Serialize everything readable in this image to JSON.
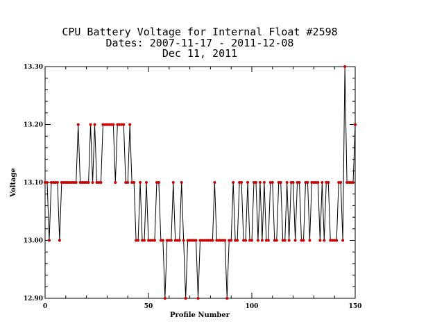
{
  "chart_data": {
    "type": "line",
    "title_lines": [
      "CPU Battery Voltage for Internal Float #2598",
      "Dates:  2007-11-17 -  2011-12-08",
      "Dec 11, 2011"
    ],
    "xlabel": "Profile Number",
    "ylabel": "Voltage",
    "xlim": [
      0,
      150
    ],
    "ylim": [
      12.9,
      13.3
    ],
    "x_ticks": [
      0,
      50,
      100,
      150
    ],
    "y_ticks": [
      "12.90",
      "13.00",
      "13.10",
      "13.20",
      "13.30"
    ],
    "grid": false,
    "line_color": "#000000",
    "marker_color": "#cc0000",
    "series": [
      {
        "values": [
          13.1,
          13.1,
          13.0,
          13.1,
          13.1,
          13.1,
          13.1,
          13.0,
          13.1,
          13.1,
          13.1,
          13.1,
          13.1,
          13.1,
          13.1,
          13.1,
          13.2,
          13.1,
          13.1,
          13.1,
          13.1,
          13.1,
          13.2,
          13.1,
          13.2,
          13.1,
          13.1,
          13.1,
          13.2,
          13.2,
          13.2,
          13.2,
          13.2,
          13.2,
          13.1,
          13.2,
          13.2,
          13.2,
          13.2,
          13.1,
          13.1,
          13.2,
          13.1,
          13.1,
          13.0,
          13.0,
          13.1,
          13.0,
          13.0,
          13.1,
          13.0,
          13.0,
          13.0,
          13.0,
          13.1,
          13.1,
          13.0,
          13.0,
          12.9,
          13.0,
          13.0,
          13.0,
          13.1,
          13.0,
          13.0,
          13.0,
          13.1,
          13.0,
          12.9,
          13.0,
          13.0,
          13.0,
          13.0,
          13.0,
          12.9,
          13.0,
          13.0,
          13.0,
          13.0,
          13.0,
          13.0,
          13.0,
          13.1,
          13.0,
          13.0,
          13.0,
          13.0,
          13.0,
          12.9,
          13.0,
          13.0,
          13.1,
          13.0,
          13.0,
          13.1,
          13.1,
          13.0,
          13.0,
          13.1,
          13.0,
          13.0,
          13.1,
          13.1,
          13.0,
          13.1,
          13.0,
          13.1,
          13.0,
          13.0,
          13.1,
          13.1,
          13.0,
          13.0,
          13.1,
          13.1,
          13.0,
          13.0,
          13.1,
          13.0,
          13.1,
          13.1,
          13.0,
          13.1,
          13.1,
          13.0,
          13.0,
          13.1,
          13.1,
          13.0,
          13.1,
          13.1,
          13.1,
          13.1,
          13.0,
          13.1,
          13.0,
          13.1,
          13.1,
          13.0,
          13.0,
          13.0,
          13.0,
          13.1,
          13.1,
          13.0,
          13.3,
          13.1,
          13.1,
          13.1,
          13.1,
          13.2
        ]
      }
    ]
  }
}
